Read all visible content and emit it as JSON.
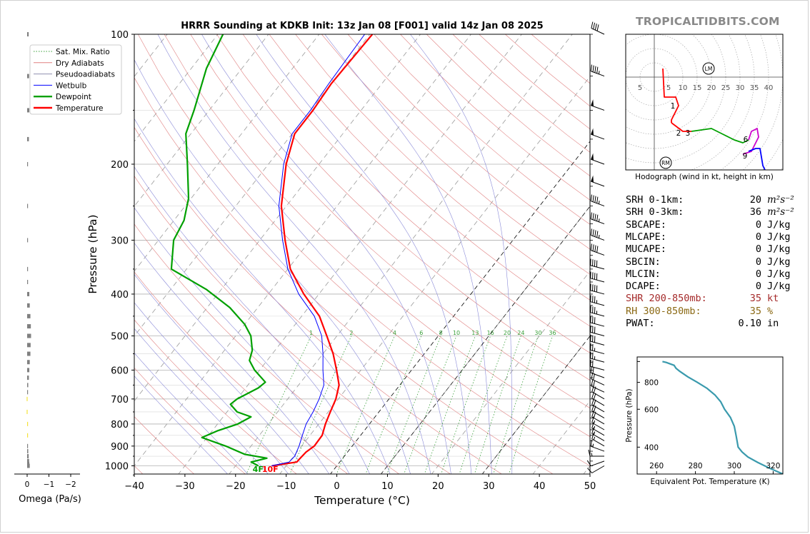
{
  "brand": "TROPICALTIDBITS.COM",
  "chart_data": [
    {
      "type": "skew-t",
      "title": "HRRR Sounding at KDKB Init: 13z Jan 08 [F001] valid 14z Jan 08 2025",
      "xlabel": "Temperature (°C)",
      "ylabel": "Pressure (hPa)",
      "xlim": [
        -40,
        50
      ],
      "ylim": [
        1050,
        100
      ],
      "xticks": [
        "−40",
        "−30",
        "−20",
        "−10",
        "0",
        "10",
        "20",
        "30",
        "40",
        "50"
      ],
      "xtick_values": [
        -40,
        -30,
        -20,
        -10,
        0,
        10,
        20,
        30,
        40,
        50
      ],
      "yticks": [
        "100",
        "200",
        "300",
        "400",
        "500",
        "600",
        "700",
        "800",
        "900",
        "1000"
      ],
      "ytick_values": [
        100,
        200,
        300,
        400,
        500,
        600,
        700,
        800,
        900,
        1000
      ],
      "legend": [
        "Sat. Mix. Ratio",
        "Dry Adiabats",
        "Pseudoadiabats",
        "Wetbulb",
        "Dewpoint",
        "Temperature"
      ],
      "legend_position": "top-left",
      "mixing_ratio_labels": [
        "1",
        "2",
        "4",
        "6",
        "8",
        "10",
        "13",
        "16",
        "20",
        "24",
        "30",
        "36"
      ],
      "mixing_ratio_values": [
        1,
        2,
        4,
        6,
        8,
        10,
        13,
        16,
        20,
        24,
        30,
        36
      ],
      "surface_labels": [
        "4F",
        "10F"
      ],
      "series": [
        {
          "name": "Temperature",
          "color": "#ff0000",
          "points": [
            [
              1000,
              -12.8
            ],
            [
              980,
              -8.5
            ],
            [
              960,
              -8.4
            ],
            [
              930,
              -8.2
            ],
            [
              900,
              -7.5
            ],
            [
              850,
              -7.6
            ],
            [
              800,
              -8.7
            ],
            [
              750,
              -9.6
            ],
            [
              700,
              -10.5
            ],
            [
              650,
              -12.0
            ],
            [
              600,
              -14.8
            ],
            [
              550,
              -18.0
            ],
            [
              500,
              -22.0
            ],
            [
              450,
              -26.5
            ],
            [
              400,
              -33.0
            ],
            [
              350,
              -39.5
            ],
            [
              300,
              -45.0
            ],
            [
              250,
              -51.0
            ],
            [
              200,
              -56.5
            ],
            [
              170,
              -59.5
            ],
            [
              150,
              -59.5
            ],
            [
              130,
              -60.0
            ],
            [
              100,
              -59.5
            ]
          ]
        },
        {
          "name": "Wetbulb",
          "color": "#0000ff",
          "points": [
            [
              1000,
              -12.9
            ],
            [
              980,
              -10.0
            ],
            [
              950,
              -9.8
            ],
            [
              900,
              -10.5
            ],
            [
              850,
              -11.5
            ],
            [
              800,
              -12.5
            ],
            [
              750,
              -13.0
            ],
            [
              700,
              -13.8
            ],
            [
              650,
              -15.0
            ],
            [
              600,
              -17.5
            ],
            [
              550,
              -20.0
            ],
            [
              500,
              -23.0
            ],
            [
              450,
              -27.5
            ],
            [
              400,
              -34.0
            ],
            [
              350,
              -40.0
            ],
            [
              300,
              -45.5
            ],
            [
              250,
              -51.5
            ],
            [
              200,
              -57.0
            ],
            [
              170,
              -60.0
            ],
            [
              150,
              -60.0
            ],
            [
              130,
              -60.5
            ],
            [
              100,
              -61.0
            ]
          ]
        },
        {
          "name": "Dewpoint",
          "color": "#00a000",
          "points": [
            [
              1000,
              -15.5
            ],
            [
              980,
              -17.5
            ],
            [
              960,
              -15.0
            ],
            [
              940,
              -20.0
            ],
            [
              900,
              -25.0
            ],
            [
              860,
              -31.0
            ],
            [
              830,
              -29.0
            ],
            [
              800,
              -26.0
            ],
            [
              770,
              -24.5
            ],
            [
              750,
              -28.0
            ],
            [
              720,
              -30.5
            ],
            [
              700,
              -30.0
            ],
            [
              660,
              -27.5
            ],
            [
              640,
              -27.0
            ],
            [
              600,
              -31.0
            ],
            [
              570,
              -33.5
            ],
            [
              540,
              -34.5
            ],
            [
              500,
              -37.0
            ],
            [
              470,
              -40.0
            ],
            [
              430,
              -45.5
            ],
            [
              390,
              -53.0
            ],
            [
              350,
              -63.0
            ],
            [
              300,
              -67.0
            ],
            [
              270,
              -68.0
            ],
            [
              240,
              -70.5
            ],
            [
              200,
              -76.0
            ],
            [
              170,
              -81.0
            ],
            [
              150,
              -83.0
            ],
            [
              120,
              -87.0
            ],
            [
              100,
              -89.0
            ]
          ]
        }
      ]
    },
    {
      "type": "hodograph",
      "caption": "Hodograph (wind in kt, height in km)",
      "ring_labels": [
        "5",
        "5",
        "10",
        "15",
        "20",
        "25",
        "30",
        "35",
        "40"
      ],
      "ring_values": [
        5,
        5,
        10,
        15,
        20,
        25,
        30,
        35,
        40
      ],
      "height_labels": [
        "1",
        "2",
        "3",
        "6",
        "9"
      ],
      "markers": [
        "LM",
        "RM"
      ],
      "segments": [
        {
          "range_km": "0-1",
          "color": "#ff0000",
          "points": [
            [
              3,
              3
            ],
            [
              3.5,
              -7
            ],
            [
              7.5,
              -7
            ],
            [
              8.5,
              -10
            ],
            [
              6,
              -15
            ],
            [
              6,
              -16
            ]
          ]
        },
        {
          "range_km": "1-3",
          "color": "#ff0000",
          "points": [
            [
              6,
              -16
            ],
            [
              10,
              -19
            ],
            [
              13,
              -19
            ]
          ]
        },
        {
          "range_km": "3-6",
          "color": "#00a000",
          "points": [
            [
              13,
              -19
            ],
            [
              20,
              -18
            ],
            [
              24,
              -20
            ],
            [
              28,
              -22
            ],
            [
              31,
              -23
            ],
            [
              33,
              -22
            ]
          ]
        },
        {
          "range_km": "6-9",
          "color": "#cc00cc",
          "points": [
            [
              33,
              -22
            ],
            [
              34,
              -19
            ],
            [
              36,
              -18
            ],
            [
              36.5,
              -21
            ],
            [
              34,
              -26
            ],
            [
              31,
              -27
            ]
          ]
        },
        {
          "range_km": "9-12",
          "color": "#0000ff",
          "points": [
            [
              33,
              -26
            ],
            [
              35.5,
              -25
            ],
            [
              37,
              -25
            ],
            [
              38,
              -31
            ],
            [
              39,
              -33
            ]
          ]
        }
      ],
      "storm_motion": [
        {
          "label": "LM",
          "u": 19,
          "v": 3
        },
        {
          "label": "RM",
          "u": 4,
          "v": -30
        }
      ]
    },
    {
      "type": "line",
      "xlabel": "Equivalent Pot. Temperature (K)",
      "ylabel": "Pressure (hPa)",
      "xlim": [
        250,
        325
      ],
      "ylim": [
        1050,
        300
      ],
      "xticks": [
        "260",
        "280",
        "300",
        "320"
      ],
      "xtick_values": [
        260,
        280,
        300,
        320
      ],
      "yticks": [
        "400",
        "600",
        "800"
      ],
      "ytick_values": [
        400,
        600,
        800
      ],
      "color": "#3a9aad",
      "points": [
        [
          1000,
          263
        ],
        [
          990,
          265
        ],
        [
          975,
          267
        ],
        [
          960,
          269
        ],
        [
          930,
          270
        ],
        [
          900,
          272
        ],
        [
          850,
          276
        ],
        [
          800,
          281
        ],
        [
          750,
          286
        ],
        [
          700,
          290
        ],
        [
          650,
          293
        ],
        [
          600,
          295
        ],
        [
          550,
          298
        ],
        [
          500,
          300
        ],
        [
          450,
          301
        ],
        [
          400,
          302
        ],
        [
          380,
          304
        ],
        [
          360,
          307
        ],
        [
          340,
          312
        ],
        [
          320,
          318
        ],
        [
          300,
          325
        ]
      ]
    },
    {
      "type": "bar",
      "orientation": "horizontal",
      "xlabel": "Omega (Pa/s)",
      "xlim": [
        0.1,
        -2.8
      ],
      "xticks": [
        "0",
        "−1",
        "−2"
      ],
      "xtick_values": [
        0,
        -1,
        -2
      ],
      "points": [
        [
          1000,
          -0.12
        ],
        [
          990,
          -0.1
        ],
        [
          975,
          -0.09
        ],
        [
          950,
          -0.07
        ],
        [
          925,
          -0.05
        ],
        [
          900,
          -0.02
        ],
        [
          850,
          0.0
        ],
        [
          800,
          0.0
        ],
        [
          750,
          0.02
        ],
        [
          700,
          0.02
        ],
        [
          675,
          -0.02
        ],
        [
          650,
          -0.05
        ],
        [
          625,
          -0.08
        ],
        [
          600,
          -0.1
        ],
        [
          575,
          -0.12
        ],
        [
          550,
          -0.15
        ],
        [
          525,
          -0.16
        ],
        [
          500,
          -0.18
        ],
        [
          475,
          -0.17
        ],
        [
          450,
          -0.15
        ],
        [
          425,
          -0.12
        ],
        [
          400,
          -0.1
        ],
        [
          375,
          -0.04
        ],
        [
          350,
          -0.02
        ],
        [
          300,
          -0.03
        ],
        [
          250,
          -0.02
        ],
        [
          200,
          -0.01
        ],
        [
          175,
          -0.08
        ],
        [
          150,
          -0.1
        ],
        [
          125,
          -0.09
        ],
        [
          100,
          -0.07
        ]
      ]
    }
  ],
  "wind_barbs": [
    {
      "p": 1000,
      "speed": 10,
      "dir": 240
    },
    {
      "p": 975,
      "speed": 10,
      "dir": 250
    },
    {
      "p": 950,
      "speed": 15,
      "dir": 270
    },
    {
      "p": 925,
      "speed": 15,
      "dir": 290
    },
    {
      "p": 900,
      "speed": 15,
      "dir": 300
    },
    {
      "p": 875,
      "speed": 15,
      "dir": 300
    },
    {
      "p": 850,
      "speed": 15,
      "dir": 300
    },
    {
      "p": 825,
      "speed": 15,
      "dir": 300
    },
    {
      "p": 800,
      "speed": 20,
      "dir": 300
    },
    {
      "p": 775,
      "speed": 20,
      "dir": 300
    },
    {
      "p": 750,
      "speed": 20,
      "dir": 300
    },
    {
      "p": 725,
      "speed": 20,
      "dir": 300
    },
    {
      "p": 700,
      "speed": 20,
      "dir": 300
    },
    {
      "p": 675,
      "speed": 20,
      "dir": 295
    },
    {
      "p": 650,
      "speed": 20,
      "dir": 295
    },
    {
      "p": 625,
      "speed": 20,
      "dir": 290
    },
    {
      "p": 600,
      "speed": 20,
      "dir": 285
    },
    {
      "p": 575,
      "speed": 25,
      "dir": 285
    },
    {
      "p": 550,
      "speed": 25,
      "dir": 285
    },
    {
      "p": 525,
      "speed": 30,
      "dir": 285
    },
    {
      "p": 500,
      "speed": 30,
      "dir": 285
    },
    {
      "p": 475,
      "speed": 30,
      "dir": 285
    },
    {
      "p": 450,
      "speed": 35,
      "dir": 285
    },
    {
      "p": 425,
      "speed": 35,
      "dir": 285
    },
    {
      "p": 400,
      "speed": 40,
      "dir": 285
    },
    {
      "p": 375,
      "speed": 40,
      "dir": 285
    },
    {
      "p": 350,
      "speed": 40,
      "dir": 285
    },
    {
      "p": 325,
      "speed": 40,
      "dir": 290
    },
    {
      "p": 300,
      "speed": 45,
      "dir": 290
    },
    {
      "p": 275,
      "speed": 45,
      "dir": 290
    },
    {
      "p": 250,
      "speed": 45,
      "dir": 290
    },
    {
      "p": 225,
      "speed": 50,
      "dir": 290
    },
    {
      "p": 200,
      "speed": 50,
      "dir": 290
    },
    {
      "p": 175,
      "speed": 50,
      "dir": 290
    },
    {
      "p": 150,
      "speed": 50,
      "dir": 290
    },
    {
      "p": 125,
      "speed": 45,
      "dir": 290
    },
    {
      "p": 100,
      "speed": 40,
      "dir": 295
    }
  ],
  "indices": [
    {
      "label": "SRH 0-1km:",
      "value": "20",
      "unit": "m²s⁻²",
      "color": "#000000"
    },
    {
      "label": "SRH 0-3km:",
      "value": "36",
      "unit": "m²s⁻²",
      "color": "#000000"
    },
    {
      "label": "SBCAPE:",
      "value": "0",
      "unit": "J/kg",
      "color": "#000000"
    },
    {
      "label": "MLCAPE:",
      "value": "0",
      "unit": "J/kg",
      "color": "#000000"
    },
    {
      "label": "MUCAPE:",
      "value": "0",
      "unit": "J/kg",
      "color": "#000000"
    },
    {
      "label": "SBCIN:",
      "value": "0",
      "unit": "J/kg",
      "color": "#000000"
    },
    {
      "label": "MLCIN:",
      "value": "0",
      "unit": "J/kg",
      "color": "#000000"
    },
    {
      "label": "DCAPE:",
      "value": "0",
      "unit": "J/kg",
      "color": "#000000"
    },
    {
      "label": "SHR 200-850mb:",
      "value": "35",
      "unit": "kt",
      "color": "#a52a2a"
    },
    {
      "label": "RH 300-850mb:",
      "value": "35",
      "unit": "%",
      "color": "#8b6914"
    },
    {
      "label": "PWAT:",
      "value": "0.10",
      "unit": "in",
      "color": "#000000"
    }
  ]
}
